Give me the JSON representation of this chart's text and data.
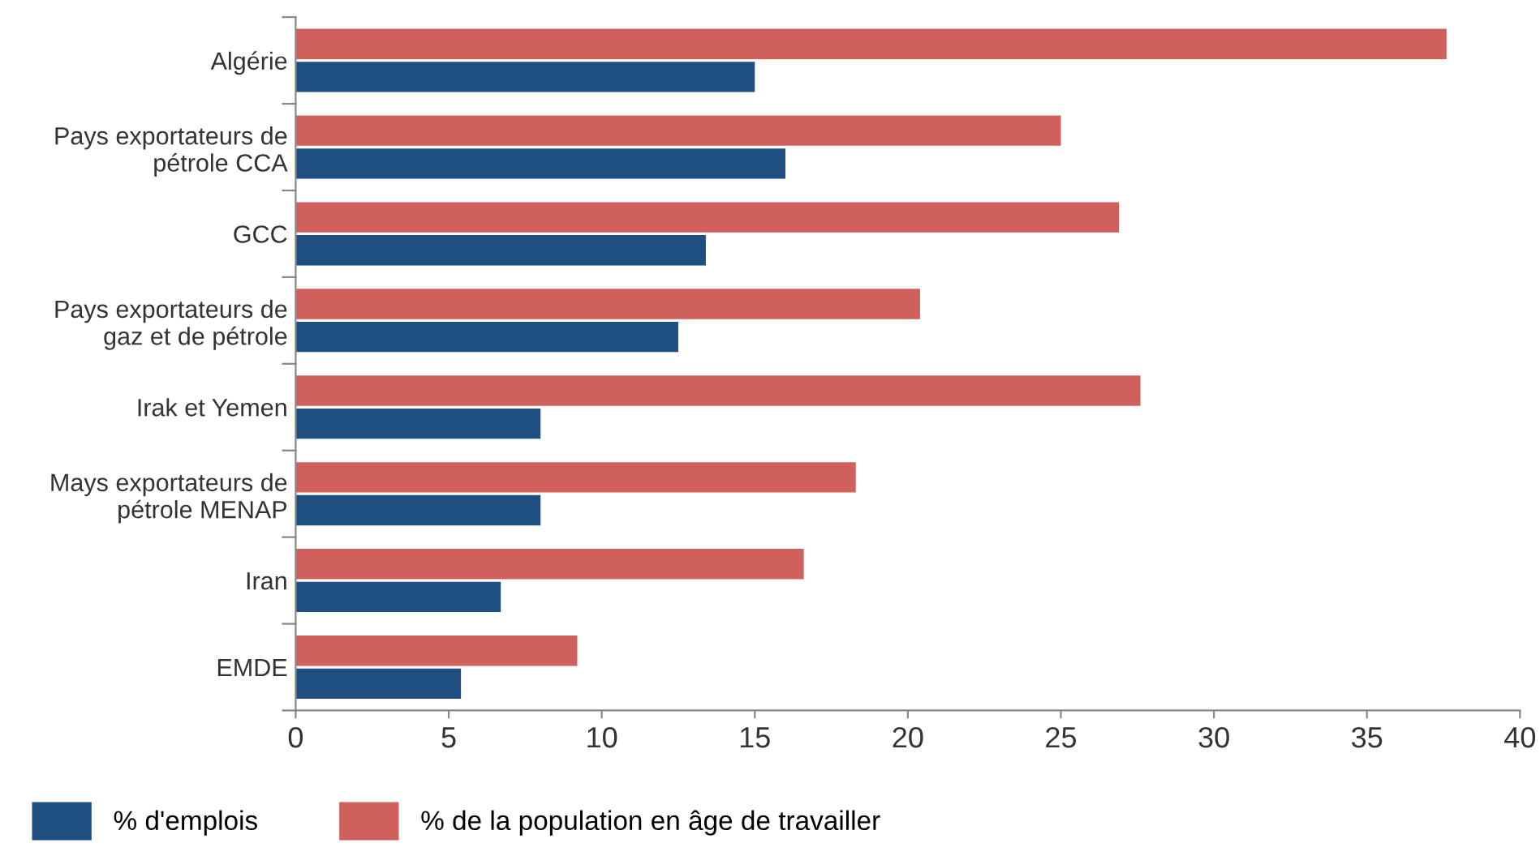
{
  "chart_data": {
    "type": "bar",
    "orientation": "horizontal",
    "categories": [
      "Algérie",
      "Pays exportateurs de\npétrole CCA",
      "GCC",
      "Pays exportateurs de\ngaz et de pétrole",
      "Irak et Yemen",
      "Mays exportateurs de\npétrole MENAP",
      "Iran",
      "EMDE"
    ],
    "series": [
      {
        "name": "% d'emplois",
        "color": "#1f4e80",
        "values": [
          15.0,
          16.0,
          13.4,
          12.5,
          8.0,
          8.0,
          6.7,
          5.4
        ]
      },
      {
        "name": "% de la population en âge de travailler",
        "color": "#d0605b",
        "values": [
          37.6,
          25.0,
          26.9,
          20.4,
          27.6,
          18.3,
          16.6,
          9.2
        ]
      }
    ],
    "xlim": [
      0,
      40
    ],
    "xticks": [
      0,
      5,
      10,
      15,
      20,
      25,
      30,
      35,
      40
    ],
    "grid": false,
    "legend": "bottom left"
  }
}
